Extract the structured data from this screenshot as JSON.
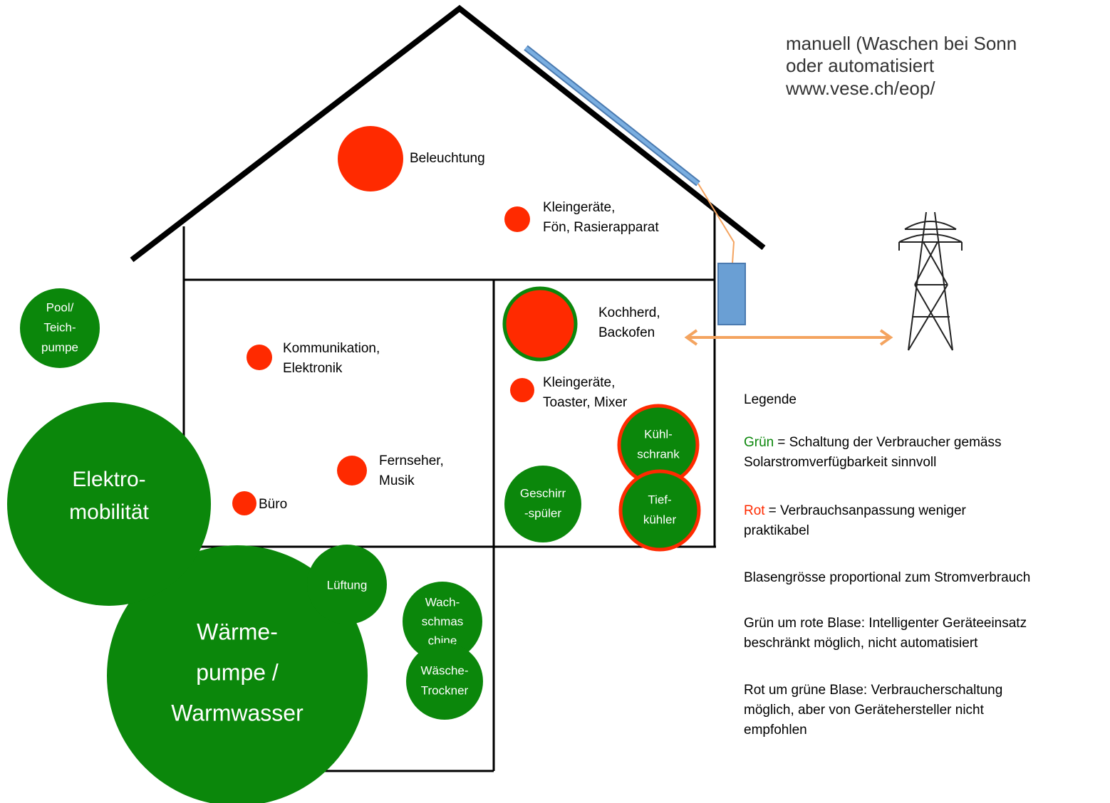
{
  "header": {
    "lines": [
      "manuell (Waschen bei Sonn",
      "oder automatisiert",
      "www.vese.ch/eop/"
    ]
  },
  "bubbles": [
    {
      "lines": [
        "Beleuchtung"
      ]
    },
    {
      "lines": [
        "Kleingeräte,",
        "Fön, Rasierapparat"
      ]
    },
    {
      "lines": [
        "Kochherd,",
        "Backofen"
      ]
    },
    {
      "lines": [
        "Kommunikation,",
        "Elektronik"
      ]
    },
    {
      "lines": [
        "Kleingeräte,",
        "Toaster, Mixer"
      ]
    },
    {
      "lines": [
        "Fernseher,",
        "Musik"
      ]
    },
    {
      "lines": [
        "Büro"
      ]
    },
    {
      "lines": [
        "Pool/",
        "Teich-",
        "pumpe"
      ]
    },
    {
      "lines": [
        "Elektro-",
        "mobilität"
      ]
    },
    {
      "lines": [
        "Geschirr",
        "-spüler"
      ]
    },
    {
      "lines": [
        "Kühl-",
        "schrank"
      ]
    },
    {
      "lines": [
        "Tief-",
        "kühler"
      ]
    },
    {
      "lines": [
        "Lüftung"
      ]
    },
    {
      "lines": [
        "Wärme-",
        "pumpe /",
        "Warmwasser"
      ]
    },
    {
      "lines": [
        "Wach-",
        "schmas",
        "chine"
      ]
    },
    {
      "lines": [
        "Wäsche-",
        "Trockner"
      ]
    }
  ],
  "legend": {
    "title": "Legende",
    "items": [
      {
        "key": "Grün",
        "lines": [
          "= Schaltung der Verbraucher gemäss",
          "Solarstromverfügbarkeit sinnvoll"
        ]
      },
      {
        "key": "Rot",
        "lines": [
          "= Verbrauchsanpassung weniger",
          "praktikabel"
        ]
      },
      {
        "lines": [
          "Blasengrösse proportional zum Stromverbrauch"
        ]
      },
      {
        "lines": [
          "Grün um rote Blase: Intelligenter Geräteeinsatz",
          "beschränkt möglich, nicht automatisiert"
        ]
      },
      {
        "lines": [
          "Rot um grüne Blase: Verbraucherschaltung",
          "möglich, aber von Gerätehersteller nicht",
          "empfohlen"
        ]
      }
    ]
  }
}
